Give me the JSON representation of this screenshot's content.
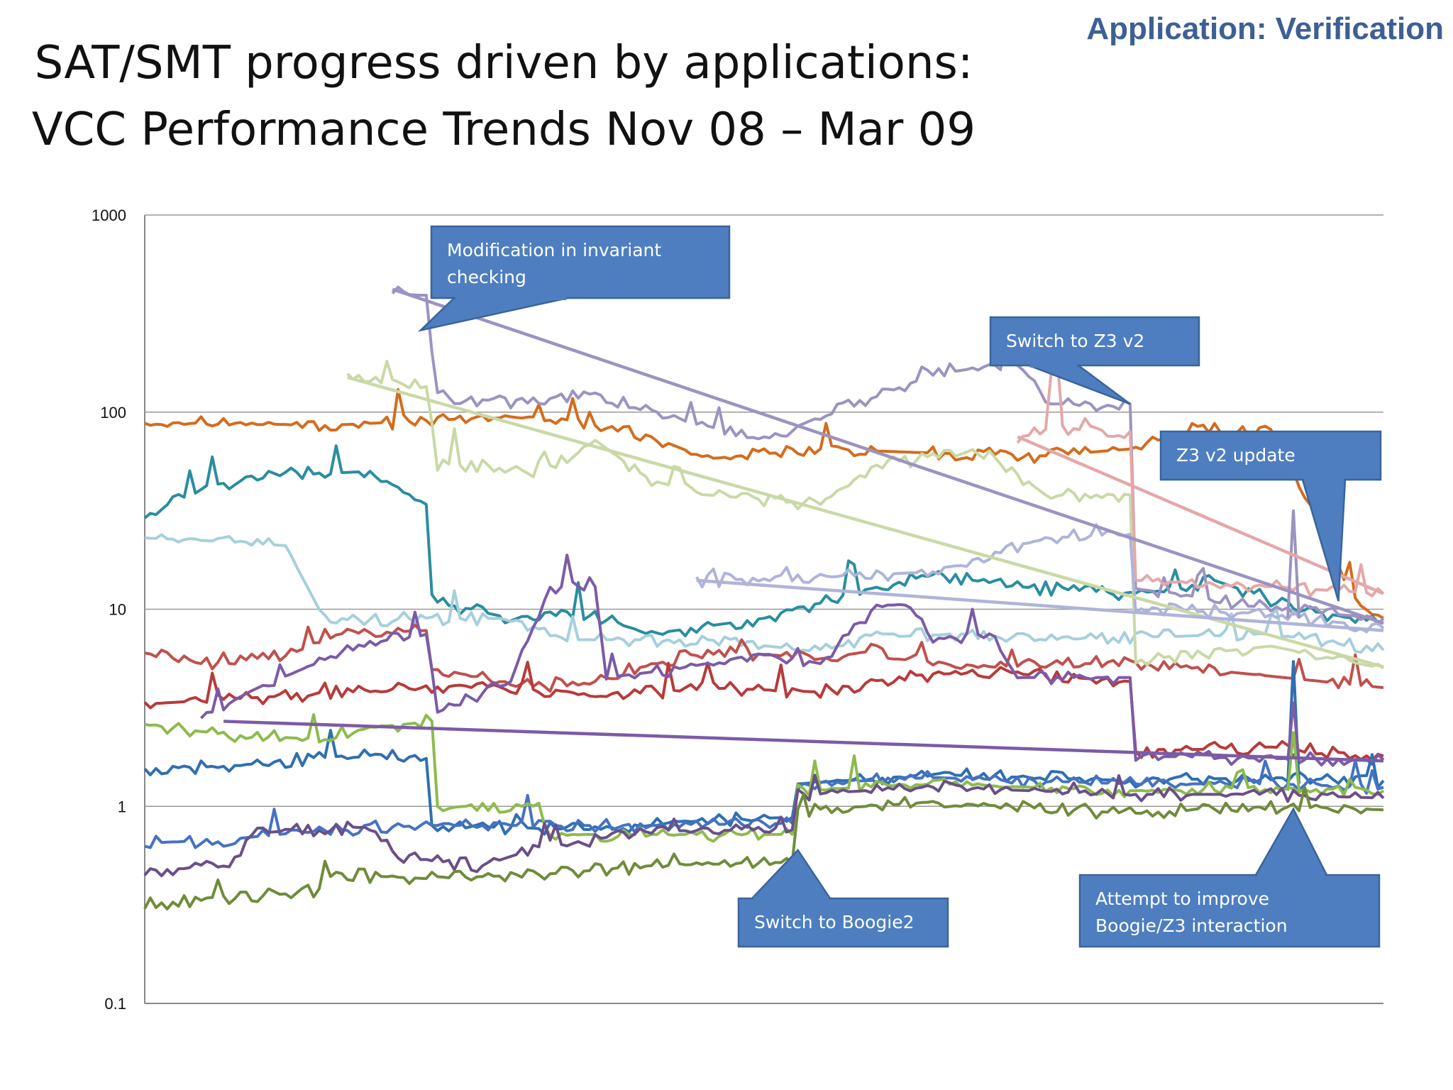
{
  "header": {
    "tag": "Application: Verification",
    "title_line1": "SAT/SMT progress driven by applications:",
    "title_line2": "VCC Performance Trends Nov 08 – Mar 09"
  },
  "chart_data": {
    "type": "line",
    "y_scale": "log",
    "ylim": [
      0.1,
      1000
    ],
    "y_ticks": [
      "0.1",
      "1",
      "10",
      "100",
      "1000"
    ],
    "x_count": 220,
    "grid": "horizontal",
    "series": [
      {
        "color": "#d46c1c",
        "segments": [
          [
            0,
            82
          ],
          [
            12,
            90
          ],
          [
            30,
            85
          ],
          [
            55,
            92
          ],
          [
            72,
            95
          ],
          [
            90,
            75
          ],
          [
            100,
            58
          ],
          [
            120,
            65
          ],
          [
            140,
            62
          ],
          [
            160,
            60
          ],
          [
            175,
            65
          ],
          [
            188,
            85
          ],
          [
            192,
            80
          ],
          [
            200,
            80
          ],
          [
            216,
            10
          ],
          [
            220,
            9.0
          ]
        ]
      },
      {
        "color": "#2a8da0",
        "segments": [
          [
            0,
            29
          ],
          [
            10,
            42
          ],
          [
            25,
            48
          ],
          [
            40,
            50
          ],
          [
            50,
            34
          ],
          [
            51,
            11
          ],
          [
            65,
            9
          ],
          [
            75,
            10
          ],
          [
            90,
            7.5
          ],
          [
            110,
            9
          ],
          [
            125,
            12
          ],
          [
            140,
            15
          ],
          [
            155,
            13
          ],
          [
            175,
            12
          ],
          [
            182,
            12.5
          ],
          [
            190,
            14
          ],
          [
            205,
            10
          ],
          [
            220,
            8.5
          ]
        ]
      },
      {
        "color": "#a6cfdc",
        "segments": [
          [
            0,
            23
          ],
          [
            15,
            22
          ],
          [
            25,
            21
          ],
          [
            32,
            8.8
          ],
          [
            50,
            9
          ],
          [
            65,
            9
          ],
          [
            75,
            7
          ],
          [
            100,
            7
          ],
          [
            115,
            6.3
          ],
          [
            130,
            7.2
          ],
          [
            145,
            7.5
          ],
          [
            160,
            7
          ],
          [
            175,
            7.2
          ],
          [
            200,
            7.5
          ],
          [
            220,
            6.2
          ]
        ]
      },
      {
        "color": "#c0504d",
        "segments": [
          [
            0,
            6
          ],
          [
            10,
            5.3
          ],
          [
            25,
            5.8
          ],
          [
            35,
            7.5
          ],
          [
            50,
            7.8
          ],
          [
            51,
            5.0
          ],
          [
            70,
            4.0
          ],
          [
            90,
            5.2
          ],
          [
            100,
            6.2
          ],
          [
            120,
            5.6
          ],
          [
            130,
            6.2
          ],
          [
            145,
            5.0
          ],
          [
            160,
            5.2
          ],
          [
            175,
            5.4
          ],
          [
            220,
            4.0
          ]
        ]
      },
      {
        "color": "#b83a3a",
        "segments": [
          [
            0,
            3.3
          ],
          [
            15,
            3.5
          ],
          [
            30,
            3.7
          ],
          [
            50,
            4.0
          ],
          [
            60,
            4.2
          ],
          [
            80,
            3.6
          ],
          [
            100,
            4.0
          ],
          [
            120,
            3.8
          ],
          [
            135,
            4.6
          ],
          [
            150,
            4.8
          ],
          [
            175,
            4.3
          ],
          [
            176,
            1.9
          ],
          [
            200,
            2.0
          ],
          [
            220,
            1.8
          ]
        ]
      },
      {
        "color": "#7b5ba7",
        "segments": [
          [
            10,
            2.8
          ],
          [
            20,
            4.0
          ],
          [
            35,
            6.0
          ],
          [
            50,
            8.0
          ],
          [
            52,
            3.0
          ],
          [
            65,
            4.3
          ],
          [
            72,
            13
          ],
          [
            80,
            13
          ],
          [
            82,
            4.5
          ],
          [
            95,
            5.0
          ],
          [
            110,
            6.0
          ],
          [
            120,
            5.3
          ],
          [
            130,
            10.5
          ],
          [
            135,
            10.5
          ],
          [
            140,
            7.0
          ],
          [
            150,
            7.5
          ],
          [
            155,
            4.5
          ],
          [
            175,
            4.5
          ],
          [
            176,
            1.8
          ],
          [
            200,
            1.75
          ],
          [
            220,
            1.72
          ]
        ]
      },
      {
        "color": "#9b93c0",
        "segments": [
          [
            44,
            400
          ],
          [
            50,
            390
          ],
          [
            52,
            120
          ],
          [
            70,
            110
          ],
          [
            80,
            125
          ],
          [
            90,
            98
          ],
          [
            100,
            85
          ],
          [
            110,
            72
          ],
          [
            120,
            95
          ],
          [
            130,
            120
          ],
          [
            140,
            155
          ],
          [
            155,
            180
          ],
          [
            160,
            110
          ],
          [
            175,
            110
          ],
          [
            176,
            13
          ],
          [
            200,
            10
          ],
          [
            220,
            9.0
          ]
        ]
      },
      {
        "color": "#c9d9a6",
        "segments": [
          [
            36,
            145
          ],
          [
            50,
            135
          ],
          [
            52,
            55
          ],
          [
            70,
            50
          ],
          [
            80,
            72
          ],
          [
            90,
            45
          ],
          [
            100,
            38
          ],
          [
            120,
            34
          ],
          [
            130,
            55
          ],
          [
            150,
            62
          ],
          [
            160,
            38
          ],
          [
            175,
            38
          ],
          [
            176,
            5.5
          ],
          [
            200,
            6.5
          ],
          [
            220,
            5.0
          ]
        ]
      },
      {
        "color": "#e4a8a8",
        "segments": [
          [
            155,
            75
          ],
          [
            160,
            78
          ],
          [
            162,
            200
          ],
          [
            163,
            82
          ],
          [
            175,
            80
          ],
          [
            176,
            14
          ],
          [
            200,
            13
          ],
          [
            220,
            12
          ]
        ]
      },
      {
        "color": "#aeb4d9",
        "segments": [
          [
            98,
            14
          ],
          [
            120,
            14.5
          ],
          [
            140,
            15.5
          ],
          [
            160,
            23
          ],
          [
            175,
            24
          ],
          [
            176,
            10
          ],
          [
            200,
            9.5
          ],
          [
            220,
            8.0
          ]
        ]
      },
      {
        "color": "#2f6fb0",
        "segments": [
          [
            0,
            1.55
          ],
          [
            15,
            1.6
          ],
          [
            30,
            1.75
          ],
          [
            40,
            1.85
          ],
          [
            50,
            1.75
          ],
          [
            51,
            0.8
          ],
          [
            80,
            0.76
          ],
          [
            100,
            0.85
          ],
          [
            115,
            0.88
          ],
          [
            116,
            1.3
          ],
          [
            140,
            1.45
          ],
          [
            175,
            1.35
          ],
          [
            200,
            1.4
          ],
          [
            220,
            1.35
          ]
        ]
      },
      {
        "color": "#4472c4",
        "segments": [
          [
            0,
            0.65
          ],
          [
            15,
            0.68
          ],
          [
            30,
            0.75
          ],
          [
            50,
            0.8
          ],
          [
            70,
            0.8
          ],
          [
            90,
            0.8
          ],
          [
            115,
            0.82
          ],
          [
            116,
            1.3
          ],
          [
            140,
            1.4
          ],
          [
            175,
            1.3
          ],
          [
            200,
            1.3
          ],
          [
            220,
            1.25
          ]
        ]
      },
      {
        "color": "#8dbb4c",
        "segments": [
          [
            0,
            2.6
          ],
          [
            15,
            2.3
          ],
          [
            30,
            2.2
          ],
          [
            40,
            2.5
          ],
          [
            51,
            2.7
          ],
          [
            52,
            1.0
          ],
          [
            70,
            1.0
          ],
          [
            72,
            0.72
          ],
          [
            100,
            0.72
          ],
          [
            115,
            0.72
          ],
          [
            116,
            1.2
          ],
          [
            140,
            1.3
          ],
          [
            175,
            1.2
          ],
          [
            200,
            1.25
          ],
          [
            220,
            1.2
          ]
        ]
      },
      {
        "color": "#6a4f8a",
        "segments": [
          [
            0,
            0.47
          ],
          [
            15,
            0.5
          ],
          [
            20,
            0.78
          ],
          [
            30,
            0.75
          ],
          [
            40,
            0.8
          ],
          [
            45,
            0.55
          ],
          [
            60,
            0.5
          ],
          [
            70,
            0.62
          ],
          [
            90,
            0.75
          ],
          [
            115,
            0.76
          ],
          [
            116,
            1.15
          ],
          [
            140,
            1.25
          ],
          [
            175,
            1.15
          ],
          [
            200,
            1.15
          ],
          [
            220,
            1.1
          ]
        ]
      },
      {
        "color": "#6f8c3a",
        "segments": [
          [
            0,
            0.32
          ],
          [
            15,
            0.34
          ],
          [
            30,
            0.37
          ],
          [
            35,
            0.45
          ],
          [
            50,
            0.43
          ],
          [
            70,
            0.45
          ],
          [
            90,
            0.5
          ],
          [
            115,
            0.52
          ],
          [
            116,
            0.95
          ],
          [
            140,
            1.05
          ],
          [
            175,
            0.92
          ],
          [
            200,
            1.0
          ],
          [
            220,
            0.96
          ]
        ]
      }
    ],
    "trend_lines": [
      {
        "color": "#9b93c0",
        "from": [
          44,
          420
        ],
        "to": [
          220,
          8.5
        ]
      },
      {
        "color": "#c9d9a6",
        "from": [
          36,
          150
        ],
        "to": [
          220,
          5.1
        ]
      },
      {
        "color": "#e4a8a8",
        "from": [
          155,
          75
        ],
        "to": [
          220,
          12
        ]
      },
      {
        "color": "#aeb4d9",
        "from": [
          98,
          14
        ],
        "to": [
          220,
          7.8
        ]
      },
      {
        "color": "#7b5ba7",
        "from": [
          14,
          2.7
        ],
        "to": [
          220,
          1.7
        ]
      }
    ],
    "spikes": [
      {
        "color": "#9b93c0",
        "x": 204,
        "base": 9,
        "peak": 32
      },
      {
        "color": "#2f6fb0",
        "x": 204,
        "base": 1.3,
        "peak": 5.5
      },
      {
        "color": "#8dbb4c",
        "x": 204,
        "base": 1.2,
        "peak": 2.4
      },
      {
        "color": "#7b5ba7",
        "x": 204,
        "base": 1.7,
        "peak": 3.4
      }
    ],
    "annotations": [
      {
        "text": [
          "Modification in invariant",
          "checking"
        ],
        "at_x": 49,
        "at_y": 260
      },
      {
        "text": [
          "Switch to Z3 v2"
        ],
        "at_x": 175,
        "at_y": 110
      },
      {
        "text": [
          "Z3 v2 update"
        ],
        "at_x": 212,
        "at_y": 11
      },
      {
        "text": [
          "Switch to Boogie2"
        ],
        "at_x": 116,
        "at_y": 0.6
      },
      {
        "text": [
          "Attempt to improve",
          "Boogie/Z3 interaction"
        ],
        "at_x": 204,
        "at_y": 0.97
      }
    ]
  }
}
